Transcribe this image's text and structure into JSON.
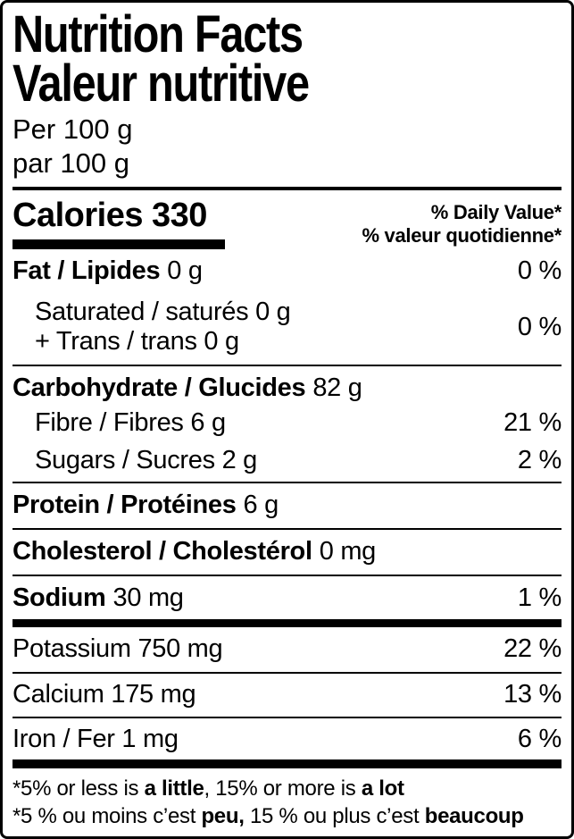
{
  "label": {
    "title_en": "Nutrition Facts",
    "title_fr": "Valeur nutritive",
    "serving_en": "Per 100 g",
    "serving_fr": "par 100 g",
    "calories_text": "Calories 330",
    "dv_header_en": "% Daily Value*",
    "dv_header_fr": "% valeur quotidienne*",
    "rows": {
      "fat": {
        "name": "Fat / Lipides",
        "amount": "0 g",
        "dv": "0 %"
      },
      "sat_trans": {
        "line1": "Saturated / saturés 0 g",
        "line2": "+ Trans / trans 0 g",
        "dv": "0 %"
      },
      "carbohydrate": {
        "name": "Carbohydrate / Glucides",
        "amount": "82 g"
      },
      "fibre": {
        "name": "Fibre / Fibres 6 g",
        "dv": "21 %"
      },
      "sugars": {
        "name": "Sugars / Sucres 2 g",
        "dv": "2 %"
      },
      "protein": {
        "name": "Protein / Protéines",
        "amount": "6 g"
      },
      "cholesterol": {
        "name": "Cholesterol / Cholestérol",
        "amount": "0 mg"
      },
      "sodium": {
        "name": "Sodium",
        "amount": "30 mg",
        "dv": "1 %"
      },
      "potassium": {
        "name": "Potassium 750 mg",
        "dv": "22 %"
      },
      "calcium": {
        "name": "Calcium 175 mg",
        "dv": "13 %"
      },
      "iron": {
        "name": "Iron / Fer 1 mg",
        "dv": "6 %"
      }
    },
    "footnote_en": {
      "part1": "*5% or less is ",
      "bold1": "a little",
      "part2": ", 15% or more is ",
      "bold2": "a lot"
    },
    "footnote_fr": {
      "part1": "*5 % ou moins c’est ",
      "bold1": "peu,",
      "part2": " 15 % ou plus c’est ",
      "bold2": "beaucoup"
    },
    "colors": {
      "text": "#000000",
      "background": "#ffffff"
    }
  }
}
